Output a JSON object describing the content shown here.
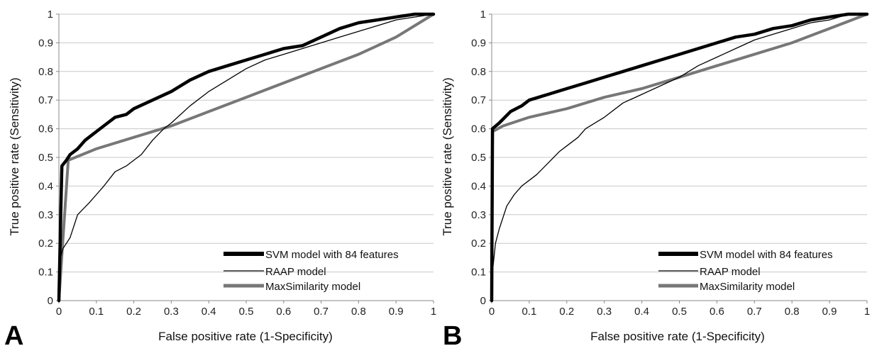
{
  "chart_data": [
    {
      "type": "line",
      "panel_label": "A",
      "xlabel": "False positive rate (1-Specificity)",
      "ylabel": "True positive rate (Sensitivity)",
      "xlim": [
        0,
        1
      ],
      "ylim": [
        0,
        1
      ],
      "x_ticks": [
        "0",
        "0.1",
        "0.2",
        "0.3",
        "0.4",
        "0.5",
        "0.6",
        "0.7",
        "0.8",
        "0.9",
        "1"
      ],
      "y_ticks": [
        "0",
        "0.1",
        "0.2",
        "0.3",
        "0.4",
        "0.5",
        "0.6",
        "0.7",
        "0.8",
        "0.9",
        "1"
      ],
      "grid": "horizontal",
      "legend_position": "bottom-right",
      "series": [
        {
          "name": "SVM model with 84 features",
          "color": "#000000",
          "style": "thick",
          "points": [
            [
              0,
              0
            ],
            [
              0.005,
              0.3
            ],
            [
              0.008,
              0.47
            ],
            [
              0.02,
              0.49
            ],
            [
              0.03,
              0.51
            ],
            [
              0.05,
              0.53
            ],
            [
              0.07,
              0.56
            ],
            [
              0.1,
              0.59
            ],
            [
              0.13,
              0.62
            ],
            [
              0.15,
              0.64
            ],
            [
              0.18,
              0.65
            ],
            [
              0.2,
              0.67
            ],
            [
              0.25,
              0.7
            ],
            [
              0.3,
              0.73
            ],
            [
              0.35,
              0.77
            ],
            [
              0.4,
              0.8
            ],
            [
              0.45,
              0.82
            ],
            [
              0.5,
              0.84
            ],
            [
              0.55,
              0.86
            ],
            [
              0.6,
              0.88
            ],
            [
              0.65,
              0.89
            ],
            [
              0.7,
              0.92
            ],
            [
              0.75,
              0.95
            ],
            [
              0.8,
              0.97
            ],
            [
              0.85,
              0.98
            ],
            [
              0.9,
              0.99
            ],
            [
              0.95,
              1.0
            ],
            [
              1.0,
              1.0
            ]
          ]
        },
        {
          "name": "RAAP model",
          "color": "#000000",
          "style": "thin",
          "points": [
            [
              0,
              0
            ],
            [
              0.005,
              0.15
            ],
            [
              0.01,
              0.18
            ],
            [
              0.03,
              0.22
            ],
            [
              0.05,
              0.3
            ],
            [
              0.08,
              0.34
            ],
            [
              0.1,
              0.37
            ],
            [
              0.12,
              0.4
            ],
            [
              0.15,
              0.45
            ],
            [
              0.18,
              0.47
            ],
            [
              0.2,
              0.49
            ],
            [
              0.22,
              0.51
            ],
            [
              0.25,
              0.56
            ],
            [
              0.28,
              0.6
            ],
            [
              0.3,
              0.62
            ],
            [
              0.35,
              0.68
            ],
            [
              0.4,
              0.73
            ],
            [
              0.45,
              0.77
            ],
            [
              0.5,
              0.81
            ],
            [
              0.55,
              0.84
            ],
            [
              0.6,
              0.86
            ],
            [
              0.65,
              0.88
            ],
            [
              0.7,
              0.9
            ],
            [
              0.75,
              0.92
            ],
            [
              0.8,
              0.94
            ],
            [
              0.85,
              0.96
            ],
            [
              0.9,
              0.98
            ],
            [
              0.95,
              0.99
            ],
            [
              1.0,
              1.0
            ]
          ]
        },
        {
          "name": "MaxSimilarity model",
          "color": "#777777",
          "style": "thick",
          "points": [
            [
              0,
              0
            ],
            [
              0.01,
              0.2
            ],
            [
              0.025,
              0.49
            ],
            [
              0.1,
              0.53
            ],
            [
              0.2,
              0.57
            ],
            [
              0.3,
              0.61
            ],
            [
              0.4,
              0.66
            ],
            [
              0.5,
              0.71
            ],
            [
              0.6,
              0.76
            ],
            [
              0.7,
              0.81
            ],
            [
              0.8,
              0.86
            ],
            [
              0.9,
              0.92
            ],
            [
              1.0,
              1.0
            ]
          ]
        }
      ]
    },
    {
      "type": "line",
      "panel_label": "B",
      "xlabel": "False positive rate (1-Specificity)",
      "ylabel": "True positive rate (Sensitivity)",
      "xlim": [
        0,
        1
      ],
      "ylim": [
        0,
        1
      ],
      "x_ticks": [
        "0",
        "0.1",
        "0.2",
        "0.3",
        "0.4",
        "0.5",
        "0.6",
        "0.7",
        "0.8",
        "0.9",
        "1"
      ],
      "y_ticks": [
        "0",
        "0.1",
        "0.2",
        "0.3",
        "0.4",
        "0.5",
        "0.6",
        "0.7",
        "0.8",
        "0.9",
        "1"
      ],
      "grid": "horizontal",
      "legend_position": "bottom-right",
      "series": [
        {
          "name": "SVM model with 84 features",
          "color": "#000000",
          "style": "thick",
          "points": [
            [
              0,
              0
            ],
            [
              0.002,
              0.6
            ],
            [
              0.02,
              0.62
            ],
            [
              0.05,
              0.66
            ],
            [
              0.08,
              0.68
            ],
            [
              0.1,
              0.7
            ],
            [
              0.15,
              0.72
            ],
            [
              0.2,
              0.74
            ],
            [
              0.25,
              0.76
            ],
            [
              0.3,
              0.78
            ],
            [
              0.35,
              0.8
            ],
            [
              0.4,
              0.82
            ],
            [
              0.45,
              0.84
            ],
            [
              0.5,
              0.86
            ],
            [
              0.55,
              0.88
            ],
            [
              0.6,
              0.9
            ],
            [
              0.65,
              0.92
            ],
            [
              0.7,
              0.93
            ],
            [
              0.75,
              0.95
            ],
            [
              0.8,
              0.96
            ],
            [
              0.85,
              0.98
            ],
            [
              0.9,
              0.99
            ],
            [
              0.95,
              1.0
            ],
            [
              1.0,
              1.0
            ]
          ]
        },
        {
          "name": "RAAP model",
          "color": "#000000",
          "style": "thin",
          "points": [
            [
              0,
              0
            ],
            [
              0.002,
              0.1
            ],
            [
              0.01,
              0.2
            ],
            [
              0.02,
              0.25
            ],
            [
              0.04,
              0.33
            ],
            [
              0.06,
              0.37
            ],
            [
              0.08,
              0.4
            ],
            [
              0.1,
              0.42
            ],
            [
              0.12,
              0.44
            ],
            [
              0.15,
              0.48
            ],
            [
              0.18,
              0.52
            ],
            [
              0.2,
              0.54
            ],
            [
              0.23,
              0.57
            ],
            [
              0.25,
              0.6
            ],
            [
              0.3,
              0.64
            ],
            [
              0.35,
              0.69
            ],
            [
              0.4,
              0.72
            ],
            [
              0.45,
              0.75
            ],
            [
              0.5,
              0.78
            ],
            [
              0.55,
              0.82
            ],
            [
              0.6,
              0.85
            ],
            [
              0.65,
              0.88
            ],
            [
              0.7,
              0.91
            ],
            [
              0.75,
              0.93
            ],
            [
              0.8,
              0.95
            ],
            [
              0.85,
              0.97
            ],
            [
              0.9,
              0.98
            ],
            [
              0.95,
              1.0
            ],
            [
              1.0,
              1.0
            ]
          ]
        },
        {
          "name": "MaxSimilarity model",
          "color": "#777777",
          "style": "thick",
          "points": [
            [
              0,
              0
            ],
            [
              0.002,
              0.59
            ],
            [
              0.03,
              0.61
            ],
            [
              0.1,
              0.64
            ],
            [
              0.2,
              0.67
            ],
            [
              0.3,
              0.71
            ],
            [
              0.4,
              0.74
            ],
            [
              0.5,
              0.78
            ],
            [
              0.6,
              0.82
            ],
            [
              0.7,
              0.86
            ],
            [
              0.8,
              0.9
            ],
            [
              0.9,
              0.95
            ],
            [
              1.0,
              1.0
            ]
          ]
        }
      ]
    }
  ]
}
